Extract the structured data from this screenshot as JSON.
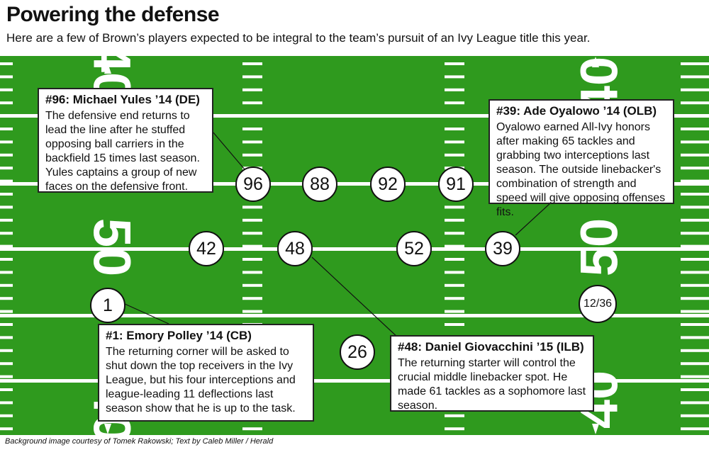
{
  "title": "Powering the defense",
  "subtitle": "Here are a few of Brown’s players expected to be integral to the team’s pursuit of an Ivy League title this year.",
  "field": {
    "yard_numbers": [
      "50",
      "40",
      "50",
      "40"
    ],
    "colors": {
      "turf": "#2f9a1e",
      "lines": "#ffffff"
    }
  },
  "players": [
    {
      "number": "96"
    },
    {
      "number": "88"
    },
    {
      "number": "92"
    },
    {
      "number": "91"
    },
    {
      "number": "42"
    },
    {
      "number": "48"
    },
    {
      "number": "52"
    },
    {
      "number": "39"
    },
    {
      "number": "1"
    },
    {
      "number": "12/36"
    },
    {
      "number": "26"
    }
  ],
  "callouts": [
    {
      "heading": "#96: Michael Yules ’14 (DE)",
      "text": "The defensive end returns to lead the line after he stuffed opposing ball carriers in the backfield 15 times last season. Yules captains a group of new faces on the defensive front."
    },
    {
      "heading": "#39: Ade Oyalowo ’14 (OLB)",
      "text": "Oyalowo earned All-Ivy honors after making 65 tackles and grabbing two interceptions last season. The outside linebacker's combination of strength and speed will give opposing offenses fits."
    },
    {
      "heading": "#1: Emory Polley ’14 (CB)",
      "text": "The returning corner will be asked to shut down the top receivers in the Ivy League, but his four interceptions and league-leading 11 deflections last season show that he is up to the task."
    },
    {
      "heading": "#48: Daniel Giovacchini ’15 (ILB)",
      "text": "The returning starter will control the crucial middle linebacker spot. He made 61 tackles as a sophomore last season."
    }
  ],
  "credit": "Background image courtesy of Tomek Rakowski; Text by Caleb Miller / Herald"
}
